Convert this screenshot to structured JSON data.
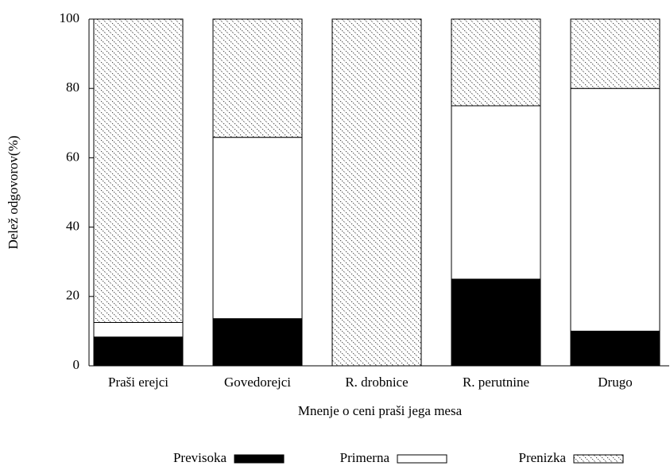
{
  "chart_data": {
    "type": "stacked_bar",
    "xlabel": "Mnenje o ceni praši jega mesa",
    "ylabel": "Delež odgovorov(%)",
    "categories": [
      "Praši erejci",
      "Govedorejci",
      "R. drobnice",
      "R. perutnine",
      "Drugo"
    ],
    "series": [
      {
        "name": "Previsoka",
        "color": "#000000",
        "values": [
          8.3,
          13.6,
          0,
          25,
          10
        ]
      },
      {
        "name": "Primerna",
        "color": "#ffffff",
        "values": [
          4.2,
          52.3,
          0,
          50,
          70
        ]
      },
      {
        "name": "Prenizka",
        "color": "hatch",
        "values": [
          87.5,
          34.1,
          100,
          25,
          20
        ]
      }
    ],
    "ylim": [
      0,
      100
    ],
    "yticks": [
      0,
      20,
      40,
      60,
      80,
      100
    ],
    "legend": "bottom"
  }
}
